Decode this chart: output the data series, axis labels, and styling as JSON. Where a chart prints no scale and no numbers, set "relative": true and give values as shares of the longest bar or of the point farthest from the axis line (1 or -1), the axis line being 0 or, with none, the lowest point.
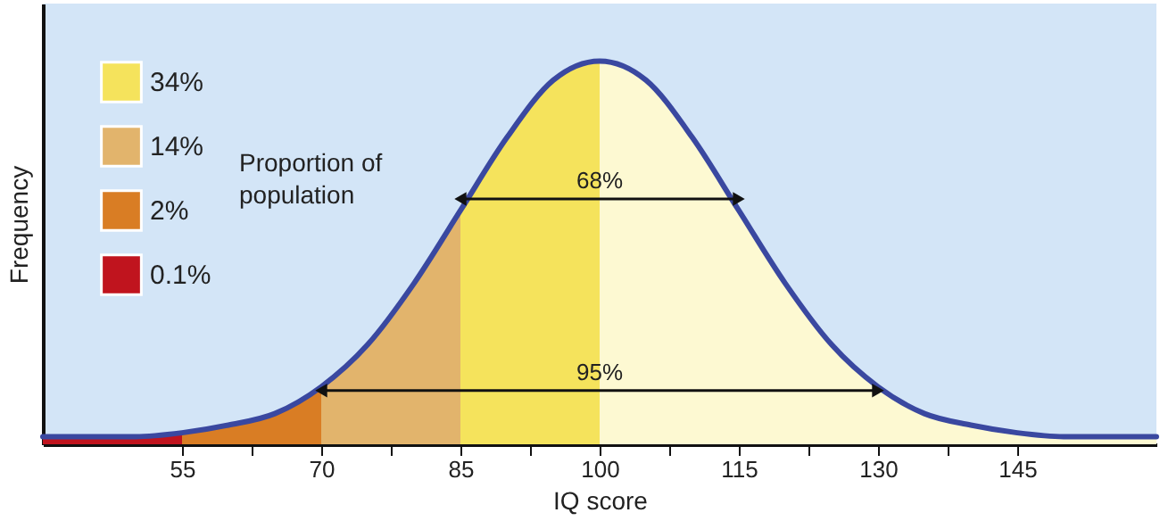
{
  "chart_data": {
    "type": "area",
    "relative": true,
    "xlabel": "IQ score",
    "ylabel": "Frequency",
    "legend_title": "Proportion of population",
    "legend": "top left",
    "xlim": [
      40,
      160
    ],
    "xticks": [
      55,
      {
        "value": 62.5,
        "label": null
      },
      70,
      {
        "value": 77.5,
        "label": null
      },
      85,
      {
        "value": 92.5,
        "label": null
      },
      100,
      {
        "value": 107.5,
        "label": null
      },
      115,
      {
        "value": 122.5,
        "label": null
      },
      130,
      {
        "value": 137.5,
        "label": null
      },
      145
    ],
    "series": [
      {
        "name": "34%",
        "color": "#f5e35c",
        "x": [
          85,
          90,
          95,
          100
        ],
        "values": [
          0.61,
          0.8,
          0.95,
          1
        ]
      },
      {
        "name": "14%",
        "color": "#e2b46c",
        "x": [
          70,
          75,
          80,
          85
        ],
        "values": [
          0.15,
          0.26,
          0.42,
          0.61
        ]
      },
      {
        "name": "2%",
        "color": "#d97d24",
        "x": [
          55,
          60,
          65,
          70
        ],
        "values": [
          0.03,
          0.05,
          0.08,
          0.15
        ]
      },
      {
        "name": "0.1%",
        "color": "#c0141e",
        "x": [
          40,
          45,
          50,
          55
        ],
        "values": [
          0.02,
          0.02,
          0.02,
          0.03
        ]
      },
      {
        "color": "#fdf9d2",
        "x": [
          100,
          105,
          110,
          115,
          120,
          125,
          130,
          135,
          140,
          145,
          150,
          155,
          160
        ],
        "values": [
          1,
          0.95,
          0.8,
          0.61,
          0.42,
          0.26,
          0.15,
          0.08,
          0.05,
          0.03,
          0.02,
          0.02,
          0.02
        ]
      },
      {
        "type": "line",
        "color": "#3a48a0",
        "x": [
          40,
          45,
          50,
          55,
          60,
          65,
          70,
          75,
          80,
          85,
          90,
          95,
          100,
          105,
          110,
          115,
          120,
          125,
          130,
          135,
          140,
          145,
          150,
          155,
          160
        ],
        "values": [
          0.02,
          0.02,
          0.02,
          0.03,
          0.05,
          0.08,
          0.15,
          0.26,
          0.42,
          0.61,
          0.8,
          0.95,
          1,
          0.95,
          0.8,
          0.61,
          0.42,
          0.26,
          0.15,
          0.08,
          0.05,
          0.03,
          0.02,
          0.02,
          0.02
        ]
      }
    ],
    "annotations": [
      {
        "text": "68%",
        "x": 100,
        "y": 0.64
      },
      {
        "text": "95%",
        "x": 100,
        "y": 0.14
      }
    ]
  }
}
